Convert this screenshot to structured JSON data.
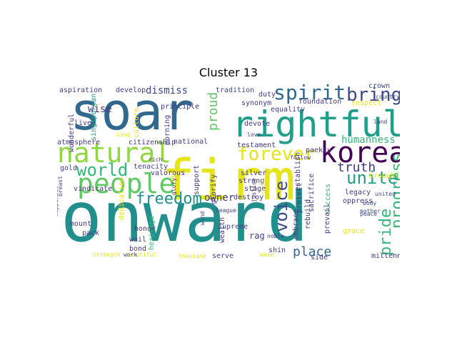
{
  "title": "Cluster 13",
  "colors": {
    "teal": "#21908d",
    "blue": "#31688e",
    "green": "#35b779",
    "lime": "#90d743",
    "yellow": "#e5e419",
    "purple": "#443983",
    "dark": "#440154",
    "steel": "#3e4989",
    "mint": "#5ec962",
    "aqua": "#1f9e89"
  },
  "words": [
    "onward",
    "firm",
    "soar",
    "rightful",
    "korea",
    "natural",
    "people",
    "spirit",
    "forever",
    "bring",
    "voice",
    "world",
    "progress",
    "unite",
    "pride",
    "freedom",
    "place",
    "truth",
    "proud",
    "humanness",
    "dismiss",
    "wise",
    "develop",
    "aspiration",
    "tradition",
    "singaporean",
    "wonderful",
    "live",
    "culture",
    "principle",
    "morning",
    "national",
    "citizenship",
    "atmosphere",
    "tenacity",
    "valorous",
    "owner",
    "glorify",
    "testament",
    "devote",
    "equality",
    "synonym",
    "foundation",
    "duty",
    "respect",
    "crown",
    "history",
    "tirelessly",
    "paektu",
    "establish",
    "sacrifice",
    "protect",
    "success",
    "legacy",
    "oppress",
    "brought",
    "silver",
    "strong",
    "stage",
    "destroy",
    "support",
    "supreme",
    "wealth",
    "serve",
    "rag",
    "shin",
    "side",
    "prevail",
    "grace",
    "rebuild",
    "embrace",
    "millennium",
    "mount",
    "pack",
    "wail",
    "bond",
    "honor",
    "dedication",
    "heritage",
    "gold",
    "vindicate",
    "rich",
    "glory",
    "justice",
    "league",
    "shine",
    "love",
    "follow",
    "noble",
    "wave",
    "beautiful",
    "strength",
    "thousand",
    "work",
    "happiness",
    "breast",
    "fatherland",
    "peace",
    "body",
    "mother",
    "united",
    "country",
    "land",
    "sing",
    "age",
    "wind"
  ]
}
